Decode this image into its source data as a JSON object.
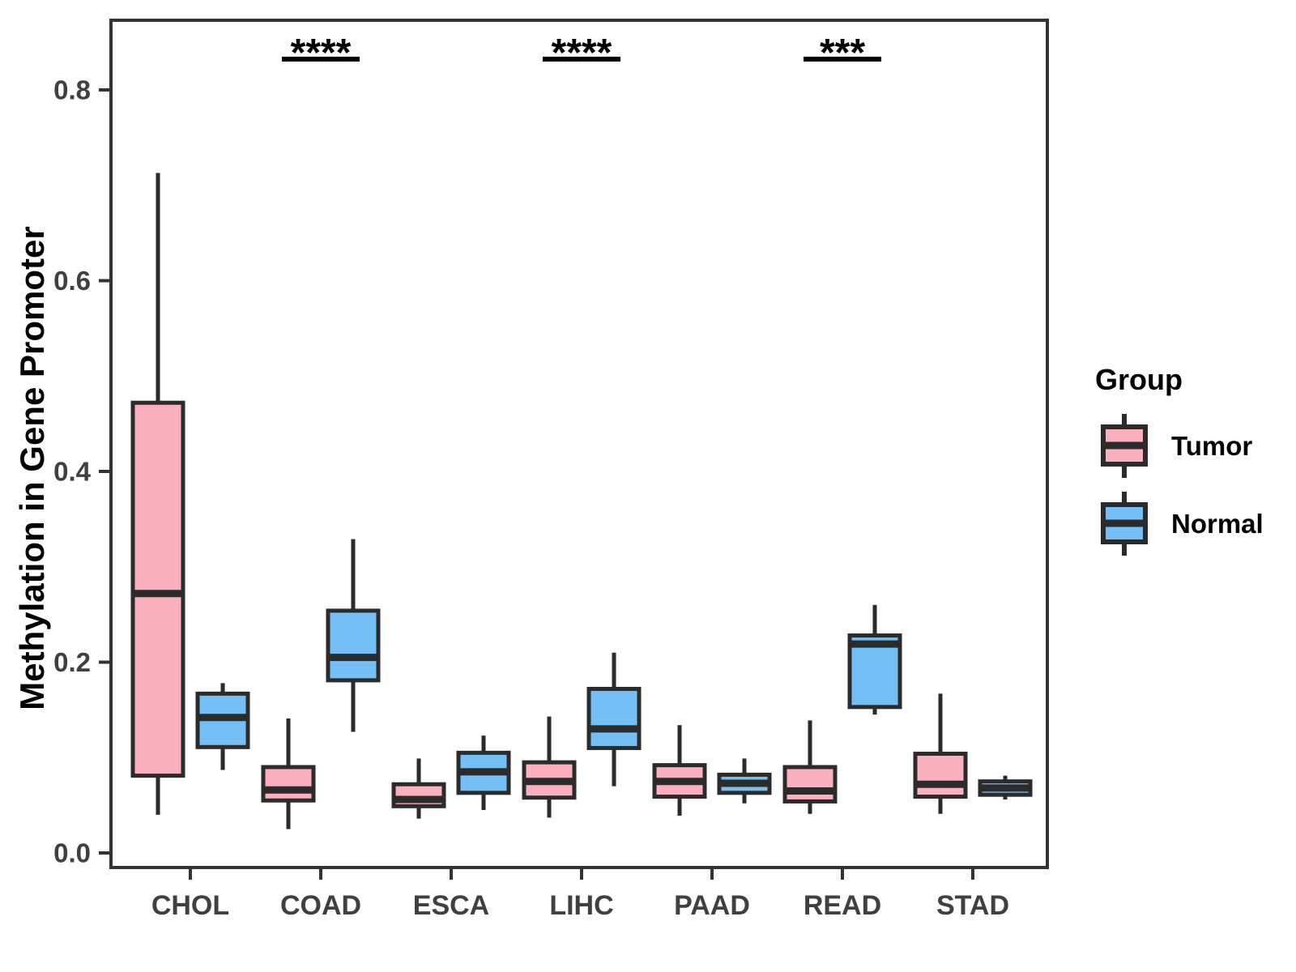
{
  "y_axis": {
    "label": "Methylation in Gene Promoter",
    "tick_labels": [
      "0.0",
      "0.2",
      "0.4",
      "0.6",
      "0.8"
    ]
  },
  "x_axis": {
    "categories": [
      "CHOL",
      "COAD",
      "ESCA",
      "LIHC",
      "PAAD",
      "READ",
      "STAD"
    ]
  },
  "legend": {
    "title": "Group",
    "items": [
      {
        "label": "Tumor",
        "color": "#FAB0BD"
      },
      {
        "label": "Normal",
        "color": "#74BFF5"
      }
    ]
  },
  "colors": {
    "tumor_fill": "#FAB0BD",
    "normal_fill": "#74BFF5",
    "box_stroke": "#2B2B2B",
    "panel_border": "#333333",
    "tick_text": "#404040",
    "significance": "#000000"
  },
  "chart_data": {
    "type": "boxplot",
    "title": "",
    "xlabel": "",
    "ylabel": "Methylation in Gene Promoter",
    "categories": [
      "CHOL",
      "COAD",
      "ESCA",
      "LIHC",
      "PAAD",
      "READ",
      "STAD"
    ],
    "yticks": [
      0.0,
      0.2,
      0.4,
      0.6,
      0.8
    ],
    "ylim": [
      -0.015,
      0.873
    ],
    "grid": false,
    "legend_position": "right",
    "series": [
      {
        "name": "Tumor",
        "color": "#FAB0BD",
        "boxes": [
          {
            "category": "CHOL",
            "min": 0.04,
            "q1": 0.081,
            "median": 0.272,
            "q3": 0.472,
            "max": 0.713
          },
          {
            "category": "COAD",
            "min": 0.025,
            "q1": 0.055,
            "median": 0.066,
            "q3": 0.09,
            "max": 0.141
          },
          {
            "category": "ESCA",
            "min": 0.036,
            "q1": 0.049,
            "median": 0.056,
            "q3": 0.072,
            "max": 0.099
          },
          {
            "category": "LIHC",
            "min": 0.037,
            "q1": 0.058,
            "median": 0.075,
            "q3": 0.095,
            "max": 0.143
          },
          {
            "category": "PAAD",
            "min": 0.039,
            "q1": 0.059,
            "median": 0.075,
            "q3": 0.092,
            "max": 0.134
          },
          {
            "category": "READ",
            "min": 0.041,
            "q1": 0.054,
            "median": 0.065,
            "q3": 0.09,
            "max": 0.139
          },
          {
            "category": "STAD",
            "min": 0.041,
            "q1": 0.059,
            "median": 0.072,
            "q3": 0.104,
            "max": 0.167
          }
        ]
      },
      {
        "name": "Normal",
        "color": "#74BFF5",
        "boxes": [
          {
            "category": "CHOL",
            "min": 0.087,
            "q1": 0.111,
            "median": 0.142,
            "q3": 0.167,
            "max": 0.178
          },
          {
            "category": "COAD",
            "min": 0.127,
            "q1": 0.181,
            "median": 0.205,
            "q3": 0.254,
            "max": 0.329
          },
          {
            "category": "ESCA",
            "min": 0.045,
            "q1": 0.063,
            "median": 0.085,
            "q3": 0.105,
            "max": 0.123
          },
          {
            "category": "LIHC",
            "min": 0.07,
            "q1": 0.11,
            "median": 0.13,
            "q3": 0.172,
            "max": 0.21
          },
          {
            "category": "PAAD",
            "min": 0.052,
            "q1": 0.063,
            "median": 0.073,
            "q3": 0.082,
            "max": 0.099
          },
          {
            "category": "READ",
            "min": 0.145,
            "q1": 0.153,
            "median": 0.219,
            "q3": 0.228,
            "max": 0.26
          },
          {
            "category": "STAD",
            "min": 0.056,
            "q1": 0.061,
            "median": 0.068,
            "q3": 0.075,
            "max": 0.081
          }
        ]
      }
    ],
    "significance": [
      {
        "category": "COAD",
        "label": "****"
      },
      {
        "category": "LIHC",
        "label": "****"
      },
      {
        "category": "READ",
        "label": "***"
      }
    ]
  }
}
